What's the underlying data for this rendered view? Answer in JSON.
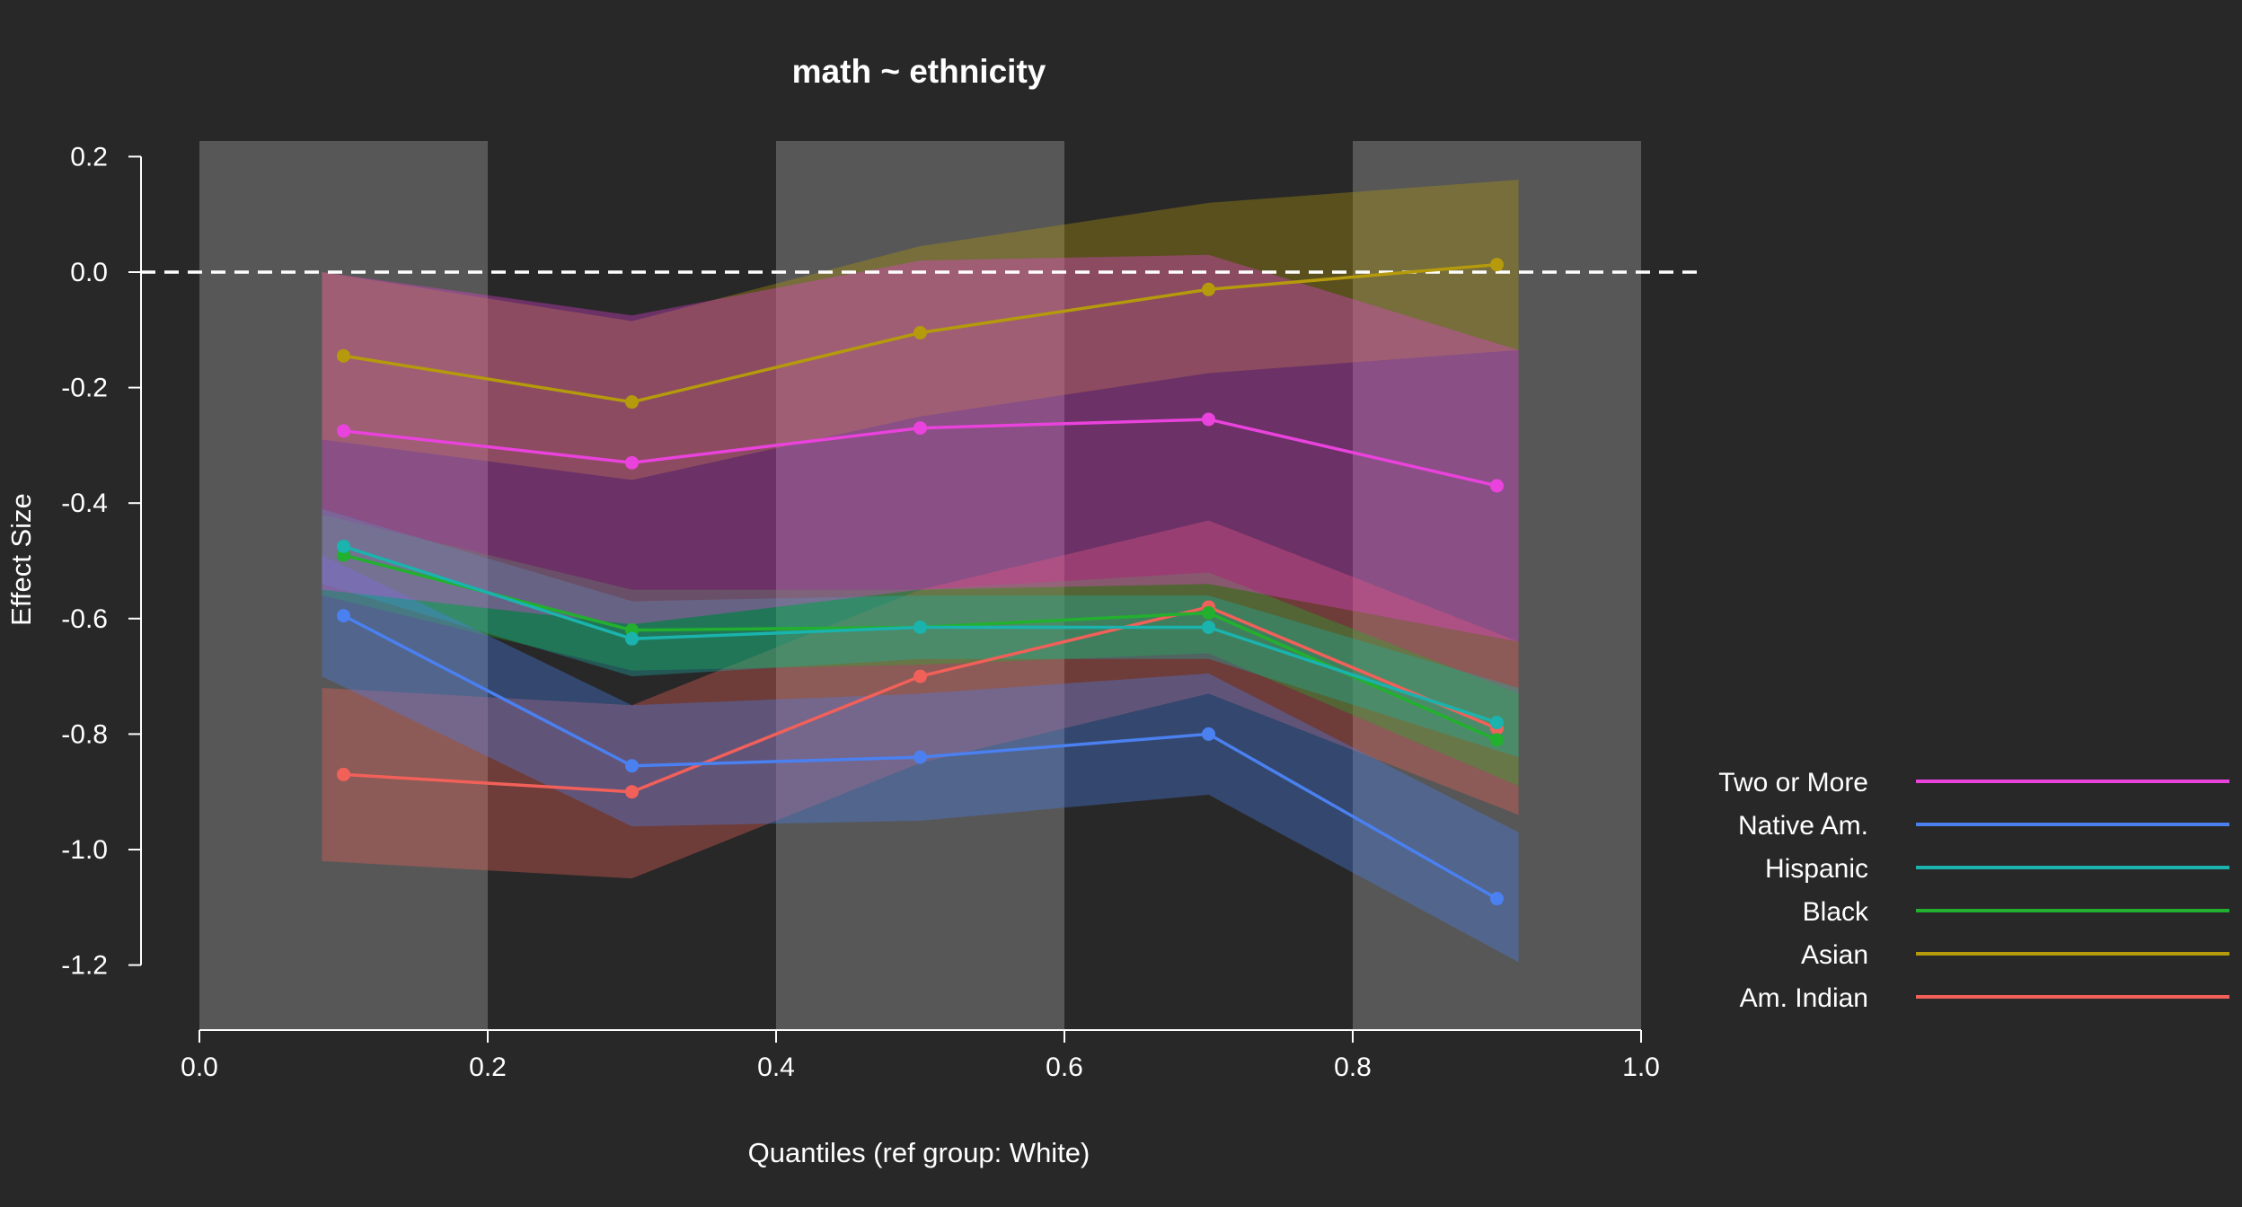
{
  "chart_data": {
    "type": "line",
    "title": "math ~ ethnicity",
    "xlabel": "Quantiles (ref group: White)",
    "ylabel": "Effect Size",
    "xlim": [
      0,
      1
    ],
    "ylim": [
      -1.3,
      0.23
    ],
    "x_ticks": [
      "0.0",
      "0.2",
      "0.4",
      "0.6",
      "0.8",
      "1.0"
    ],
    "y_ticks": [
      "0.2",
      "0.0",
      "-0.2",
      "-0.4",
      "-0.6",
      "-0.8",
      "-1.0",
      "-1.2"
    ],
    "reference_line": 0,
    "shaded_x_bands": [
      [
        0,
        0.2
      ],
      [
        0.4,
        0.6
      ],
      [
        0.8,
        1.0
      ]
    ],
    "legend_position": "right",
    "x": [
      0.1,
      0.3,
      0.5,
      0.7,
      0.9
    ],
    "series": [
      {
        "name": "Am. Indian",
        "color": "#f2605a",
        "values": [
          -0.87,
          -0.9,
          -0.7,
          -0.58,
          -0.79
        ],
        "lower": [
          -1.02,
          -1.05,
          -0.85,
          -0.73,
          -0.94
        ],
        "upper": [
          -0.72,
          -0.75,
          -0.55,
          -0.43,
          -0.64
        ]
      },
      {
        "name": "Asian",
        "color": "#b59a0c",
        "values": [
          -0.145,
          -0.225,
          -0.105,
          -0.03,
          0.013
        ],
        "lower": [
          -0.29,
          -0.36,
          -0.25,
          -0.175,
          -0.135
        ],
        "upper": [
          0.0,
          -0.085,
          0.045,
          0.12,
          0.16
        ]
      },
      {
        "name": "Black",
        "color": "#22b02e",
        "values": [
          -0.49,
          -0.62,
          -0.615,
          -0.59,
          -0.81
        ],
        "lower": [
          -0.56,
          -0.69,
          -0.68,
          -0.66,
          -0.89
        ],
        "upper": [
          -0.42,
          -0.55,
          -0.55,
          -0.52,
          -0.73
        ]
      },
      {
        "name": "Hispanic",
        "color": "#1ab3ad",
        "values": [
          -0.475,
          -0.635,
          -0.615,
          -0.615,
          -0.78
        ],
        "lower": [
          -0.54,
          -0.7,
          -0.67,
          -0.67,
          -0.84
        ],
        "upper": [
          -0.41,
          -0.57,
          -0.56,
          -0.56,
          -0.72
        ]
      },
      {
        "name": "Native Am.",
        "color": "#4a80f0",
        "values": [
          -0.595,
          -0.855,
          -0.84,
          -0.8,
          -1.085
        ],
        "lower": [
          -0.7,
          -0.96,
          -0.95,
          -0.905,
          -1.195
        ],
        "upper": [
          -0.49,
          -0.75,
          -0.73,
          -0.695,
          -0.97
        ]
      },
      {
        "name": "Two or More",
        "color": "#ea42dc",
        "values": [
          -0.275,
          -0.33,
          -0.27,
          -0.255,
          -0.37
        ],
        "lower": [
          -0.55,
          -0.61,
          -0.55,
          -0.54,
          -0.64
        ],
        "upper": [
          0.0,
          -0.075,
          0.02,
          0.03,
          -0.135
        ]
      }
    ],
    "legend": [
      "Two or More",
      "Native Am.",
      "Hispanic",
      "Black",
      "Asian",
      "Am. Indian"
    ],
    "colors": {
      "background": "#282828",
      "shaded_band": "#575757",
      "axis": "#ffffff",
      "reference_line": "#ffffff"
    }
  }
}
